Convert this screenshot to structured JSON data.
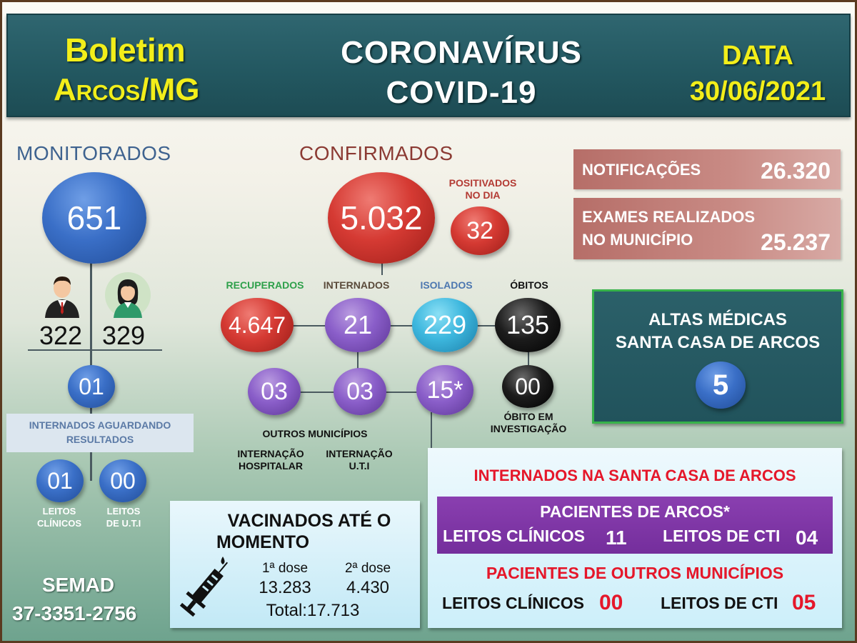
{
  "header": {
    "left_line1": "Boletim",
    "left_line2": "Arcos/MG",
    "center_line1": "CORONAVÍRUS",
    "center_line2": "COVID-19",
    "right_line1": "DATA",
    "right_line2": "30/06/2021"
  },
  "monitorados": {
    "title": "MONITORADOS",
    "total": "651",
    "male_count": "322",
    "female_count": "329",
    "internados_aguardando": "01",
    "aguardando_label_line1": "INTERNADOS AGUARDANDO",
    "aguardando_label_line2": "RESULTADOS",
    "leitos_clinicos": "01",
    "leitos_uti": "00",
    "leitos_clinicos_label_line1": "LEITOS",
    "leitos_clinicos_label_line2": "CLÍNICOS",
    "leitos_uti_label_line1": "LEITOS",
    "leitos_uti_label_line2": "DE U.T.I"
  },
  "confirmados": {
    "title": "CONFIRMADOS",
    "total": "5.032",
    "positivados_label_line1": "POSITIVADOS",
    "positivados_label_line2": "NO DIA",
    "positivados": "32",
    "recuperados_label": "RECUPERADOS",
    "recuperados": "4.647",
    "internados_label": "INTERNADOS",
    "internados": "21",
    "isolados_label": "ISOLADOS",
    "isolados": "229",
    "obitos_label": "ÓBITOS",
    "obitos": "135",
    "obito_investigacao": "00",
    "obito_investigacao_label_line1": "ÓBITO EM",
    "obito_investigacao_label_line2": "INVESTIGAÇÃO",
    "internacao_hospitalar": "03",
    "internacao_uti": "03",
    "santa_casa_arcos": "15*",
    "outros_municipios_label": "OUTROS MUNICÍPIOS",
    "internacao_hospitalar_label_line1": "INTERNAÇÃO",
    "internacao_hospitalar_label_line2": "HOSPITALAR",
    "internacao_uti_label_line1": "INTERNAÇÃO",
    "internacao_uti_label_line2": "U.T.I"
  },
  "notificacoes": {
    "label": "NOTIFICAÇÕES",
    "value": "26.320"
  },
  "exames": {
    "label_line1": "EXAMES REALIZADOS",
    "label_line2": "NO MUNICÍPIO",
    "value": "25.237"
  },
  "altas": {
    "line1": "ALTAS MÉDICAS",
    "line2": "SANTA CASA DE ARCOS",
    "value": "5"
  },
  "vacinados": {
    "title_line1": "VACINADOS ATÉ O",
    "title_line2": "MOMENTO",
    "dose1_label": "1ª dose",
    "dose2_label": "2ª dose",
    "dose1": "13.283",
    "dose2": "4.430",
    "total": "Total:17.713"
  },
  "santa_casa": {
    "title": "INTERNADOS NA SANTA CASA DE ARCOS",
    "arcos_title": "PACIENTES DE ARCOS*",
    "arcos_clinicos_label": "LEITOS CLÍNICOS",
    "arcos_clinicos": "11",
    "arcos_cti_label": "LEITOS DE CTI",
    "arcos_cti": "04",
    "outros_title": "PACIENTES DE OUTROS MUNICÍPIOS",
    "outros_clinicos_label": "LEITOS CLÍNICOS",
    "outros_clinicos": "00",
    "outros_cti_label": "LEITOS DE CTI",
    "outros_cti": "05"
  },
  "footer": {
    "line1": "SEMAD",
    "line2": "37-3351-2756"
  },
  "colors": {
    "header_bg": "#235861",
    "header_yellow": "#f2ee1a",
    "accent_red": "#e5172a",
    "accent_purple": "#742e9c",
    "accent_green": "#37b34a"
  }
}
